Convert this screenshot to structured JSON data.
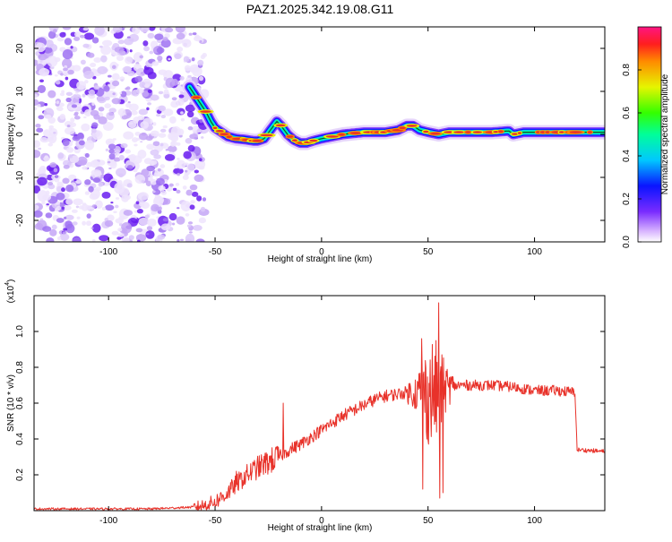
{
  "title": "PAZ1.2025.342.19.08.G11",
  "colors": {
    "snr_line": "#e8322a",
    "spectro_core": "#e8322a",
    "scatter_dark": "#6a1df0",
    "scatter_light": "#d7c6f7"
  },
  "chart_data": [
    {
      "type": "heatmap",
      "title": "",
      "xlabel": "Height of straight line (km)",
      "ylabel": "Frequency (Hz)",
      "xlim": [
        -135,
        133
      ],
      "ylim": [
        -25,
        25
      ],
      "xticks": [
        -100,
        -50,
        0,
        50,
        100
      ],
      "xtick_labels": [
        "-100",
        "-50",
        "0",
        "50",
        "100"
      ],
      "yticks": [
        -20,
        -10,
        0,
        10,
        20
      ],
      "ytick_labels": [
        "-20",
        "-10",
        "0",
        "10",
        "20"
      ],
      "noise_region_x": [
        -135,
        -60
      ],
      "ridge": {
        "x": [
          -62,
          -58,
          -54,
          -52,
          -50,
          -47,
          -44,
          -40,
          -36,
          -32,
          -30,
          -27,
          -24,
          -21,
          -19,
          -16,
          -13,
          -10,
          -7,
          -4,
          0,
          5,
          10,
          20,
          30,
          36,
          40,
          43,
          46,
          50,
          55,
          60,
          70,
          80,
          88,
          90,
          95,
          100,
          110,
          120,
          133
        ],
        "freq": [
          11,
          8,
          5,
          3,
          1.5,
          0.5,
          -0.5,
          -1,
          -1.2,
          -1.5,
          -1.5,
          -1,
          1,
          3,
          2,
          0,
          -1.3,
          -2,
          -2,
          -1.5,
          -1,
          -0.5,
          0,
          0.5,
          0.5,
          1,
          2,
          2,
          1,
          0.5,
          0,
          0.5,
          0.5,
          0.5,
          0.8,
          0,
          0.5,
          0.5,
          0.5,
          0.5,
          0.5
        ]
      },
      "colorbar": {
        "label": "Normalized spectral amplitude",
        "range": [
          0.0,
          1.0
        ],
        "ticks": [
          0.0,
          0.2,
          0.4,
          0.6,
          0.8
        ],
        "tick_labels": [
          "0.0",
          "0.2",
          "0.4",
          "0.6",
          "0.8"
        ]
      }
    },
    {
      "type": "line",
      "title": "",
      "xlabel": "Height of straight line (km)",
      "ylabel": "SNR (10 * v/v)",
      "scale_label": "(x10",
      "scale_exponent": "4",
      "xlim": [
        -135,
        133
      ],
      "ylim": [
        0,
        1.2
      ],
      "xticks": [
        -100,
        -50,
        0,
        50,
        100
      ],
      "xtick_labels": [
        "-100",
        "-50",
        "0",
        "50",
        "100"
      ],
      "yticks": [
        0.2,
        0.4,
        0.6,
        0.8,
        1.0
      ],
      "ytick_labels": [
        "0.2",
        "0.4",
        "0.6",
        "0.8",
        "1.0"
      ],
      "series": [
        {
          "name": "SNR",
          "x": [
            -135,
            -80,
            -60,
            -55,
            -50,
            -45,
            -40,
            -35,
            -30,
            -25,
            -20,
            -15,
            -10,
            -5,
            0,
            5,
            10,
            15,
            20,
            25,
            30,
            35,
            40,
            45,
            50,
            55,
            60,
            65,
            70,
            80,
            90,
            100,
            110,
            119,
            120,
            133
          ],
          "values": [
            0.01,
            0.01,
            0.02,
            0.03,
            0.05,
            0.09,
            0.15,
            0.2,
            0.24,
            0.27,
            0.3,
            0.34,
            0.37,
            0.41,
            0.45,
            0.49,
            0.53,
            0.56,
            0.59,
            0.62,
            0.64,
            0.65,
            0.66,
            0.66,
            0.65,
            0.67,
            0.69,
            0.7,
            0.7,
            0.7,
            0.69,
            0.67,
            0.67,
            0.66,
            0.34,
            0.33
          ],
          "spikes": [
            {
              "x": -40,
              "value": 0.22
            },
            {
              "x": -18,
              "value": 0.6
            },
            {
              "x": 47,
              "value": 0.96
            },
            {
              "x": 47.5,
              "value": 0.12
            },
            {
              "x": 55,
              "value": 1.16
            },
            {
              "x": 55.5,
              "value": 0.07
            },
            {
              "x": 57,
              "value": 0.1
            }
          ]
        }
      ]
    }
  ]
}
